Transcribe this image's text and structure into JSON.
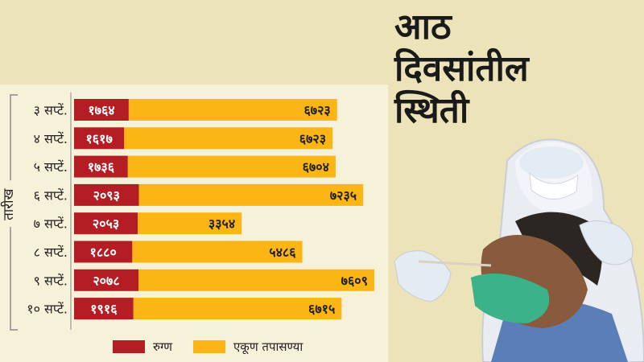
{
  "headline": {
    "line1": "आठ",
    "line2": "दिवसांतील",
    "line3": "स्थिती"
  },
  "colors": {
    "background": "#ece3b8",
    "panel": "#f6f1d9",
    "patients": "#b51d24",
    "tests": "#fbb514",
    "frame": "#8a8a8a"
  },
  "chart_data": {
    "type": "bar",
    "orientation": "horizontal",
    "stacked": true,
    "ylabel": "तारीख",
    "categories": [
      "३ सप्टें.",
      "४ सप्टें.",
      "५ सप्टें.",
      "६ सप्टें.",
      "७ सप्टें.",
      "८ सप्टें.",
      "९ सप्टें.",
      "१० सप्टें."
    ],
    "series": [
      {
        "name": "रुग्ण",
        "values": [
          1764,
          1617,
          1736,
          2093,
          2053,
          1880,
          2078,
          1916
        ],
        "labels": [
          "१७६४",
          "१६१७",
          "१७३६",
          "२०९३",
          "२०५३",
          "१८८०",
          "२०७८",
          "१९१६"
        ]
      },
      {
        "name": "एकूण तपासण्या",
        "values": [
          6723,
          6723,
          6704,
          7235,
          3354,
          5486,
          7609,
          6715
        ],
        "labels": [
          "६७२३",
          "६७२३",
          "६७०४",
          "७२३५",
          "३३५४",
          "५४८६",
          "७६०९",
          "६७१५"
        ]
      }
    ],
    "legend": {
      "position": "bottom"
    }
  }
}
